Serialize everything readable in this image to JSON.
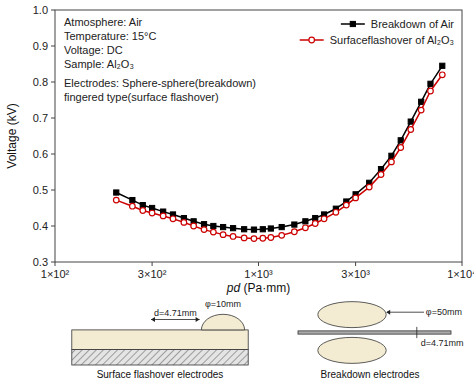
{
  "chart_data": {
    "type": "line",
    "x_label": "pd (Pa·mm)",
    "y_label": "Voltage (kV)",
    "log": "x",
    "grid": false,
    "legend": "upper right",
    "xlim": [
      100,
      10000
    ],
    "xticks": [
      {
        "value": 100,
        "label": "1×10²"
      },
      {
        "value": 300,
        "label": "3×10²"
      },
      {
        "value": 1000,
        "label": "1×10³"
      },
      {
        "value": 3000,
        "label": "3×10³"
      },
      {
        "value": 10000,
        "label": "1×10⁴"
      }
    ],
    "ylim": [
      0.3,
      1.0
    ],
    "yticks": [
      0.3,
      0.4,
      0.5,
      0.6,
      0.7,
      0.8,
      0.9,
      {
        "value": 1.0,
        "label": "1.0"
      }
    ],
    "x": [
      200,
      240,
      270,
      300,
      340,
      380,
      430,
      480,
      540,
      600,
      670,
      750,
      850,
      950,
      1050,
      1150,
      1300,
      1500,
      1700,
      1900,
      2100,
      2400,
      2700,
      3000,
      3500,
      4000,
      4500,
      5000,
      5600,
      6300,
      7000,
      8000
    ],
    "series": [
      {
        "name": "Breakdown of Air",
        "color": "#000000",
        "marker": "square",
        "values": [
          0.493,
          0.472,
          0.458,
          0.45,
          0.44,
          0.432,
          0.422,
          0.413,
          0.405,
          0.4,
          0.397,
          0.394,
          0.391,
          0.39,
          0.391,
          0.393,
          0.397,
          0.404,
          0.413,
          0.422,
          0.432,
          0.448,
          0.468,
          0.488,
          0.52,
          0.558,
          0.595,
          0.638,
          0.69,
          0.745,
          0.795,
          0.845
        ]
      },
      {
        "name": "Surfaceflashover of Al₂O₃",
        "color": "#cc0000",
        "marker": "circle",
        "values": [
          0.472,
          0.455,
          0.443,
          0.436,
          0.428,
          0.42,
          0.41,
          0.4,
          0.39,
          0.383,
          0.376,
          0.371,
          0.367,
          0.365,
          0.366,
          0.368,
          0.374,
          0.384,
          0.395,
          0.407,
          0.42,
          0.438,
          0.458,
          0.478,
          0.508,
          0.543,
          0.578,
          0.618,
          0.668,
          0.722,
          0.775,
          0.82
        ]
      }
    ],
    "annotations": [
      "Atmosphere: Air",
      "Temperature: 15°C",
      "Voltage: DC",
      "Sample: Al₂O₃",
      "Electrodes: Sphere-sphere(breakdown)",
      "fingered type(surface flashover)",
      "d=4.71mm",
      "φ=10mm",
      "Surface flashover electrodes",
      "d=4.71mm",
      "φ=50mm",
      "Breakdown electrodes"
    ]
  }
}
